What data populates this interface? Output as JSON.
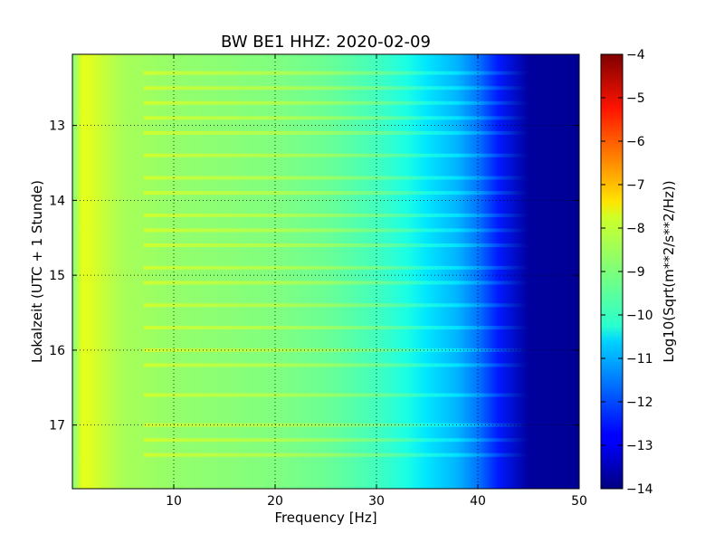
{
  "chart_data": {
    "type": "heatmap",
    "title": "BW BE1 HHZ: 2020-02-09",
    "xlabel": "Frequency [Hz]",
    "ylabel": "Lokalzeit (UTC + 1 Stunde)",
    "colorbar_label": "Log10(Sqrt(m**2/s**2/Hz))",
    "x_range": [
      0,
      50
    ],
    "y_range": [
      12.05,
      17.85
    ],
    "y_inverted": true,
    "x_ticks": [
      10,
      20,
      30,
      40,
      50
    ],
    "x_tick_labels": [
      "10",
      "20",
      "30",
      "40",
      "50"
    ],
    "y_ticks": [
      13,
      14,
      15,
      16,
      17
    ],
    "y_tick_labels": [
      "13",
      "14",
      "15",
      "16",
      "17"
    ],
    "color_range": [
      -14,
      -4
    ],
    "colorbar_ticks": [
      -4,
      -5,
      -6,
      -7,
      -8,
      -9,
      -10,
      -11,
      -12,
      -13,
      -14
    ],
    "colorbar_tick_labels": [
      "−4",
      "−5",
      "−6",
      "−7",
      "−8",
      "−9",
      "−10",
      "−11",
      "−12",
      "−13",
      "−14"
    ],
    "colormap": "jet",
    "grid": true,
    "spectrum_profile": {
      "freq_hz": [
        0,
        1,
        2,
        3,
        5,
        10,
        15,
        20,
        25,
        30,
        33,
        35,
        38,
        40,
        42,
        45,
        50
      ],
      "log10_amplitude": [
        -9.0,
        -8.0,
        -8.1,
        -8.3,
        -8.6,
        -8.8,
        -8.9,
        -9.0,
        -9.2,
        -9.6,
        -10.0,
        -10.5,
        -11.0,
        -11.6,
        -12.5,
        -13.7,
        -13.8
      ]
    },
    "noise_bands_hours": [
      12.3,
      12.5,
      12.7,
      12.9,
      13.1,
      13.4,
      13.7,
      13.9,
      14.2,
      14.4,
      14.6,
      14.9,
      15.1,
      15.4,
      15.7,
      16.0,
      16.2,
      16.6,
      17.0,
      17.2,
      17.4
    ]
  }
}
